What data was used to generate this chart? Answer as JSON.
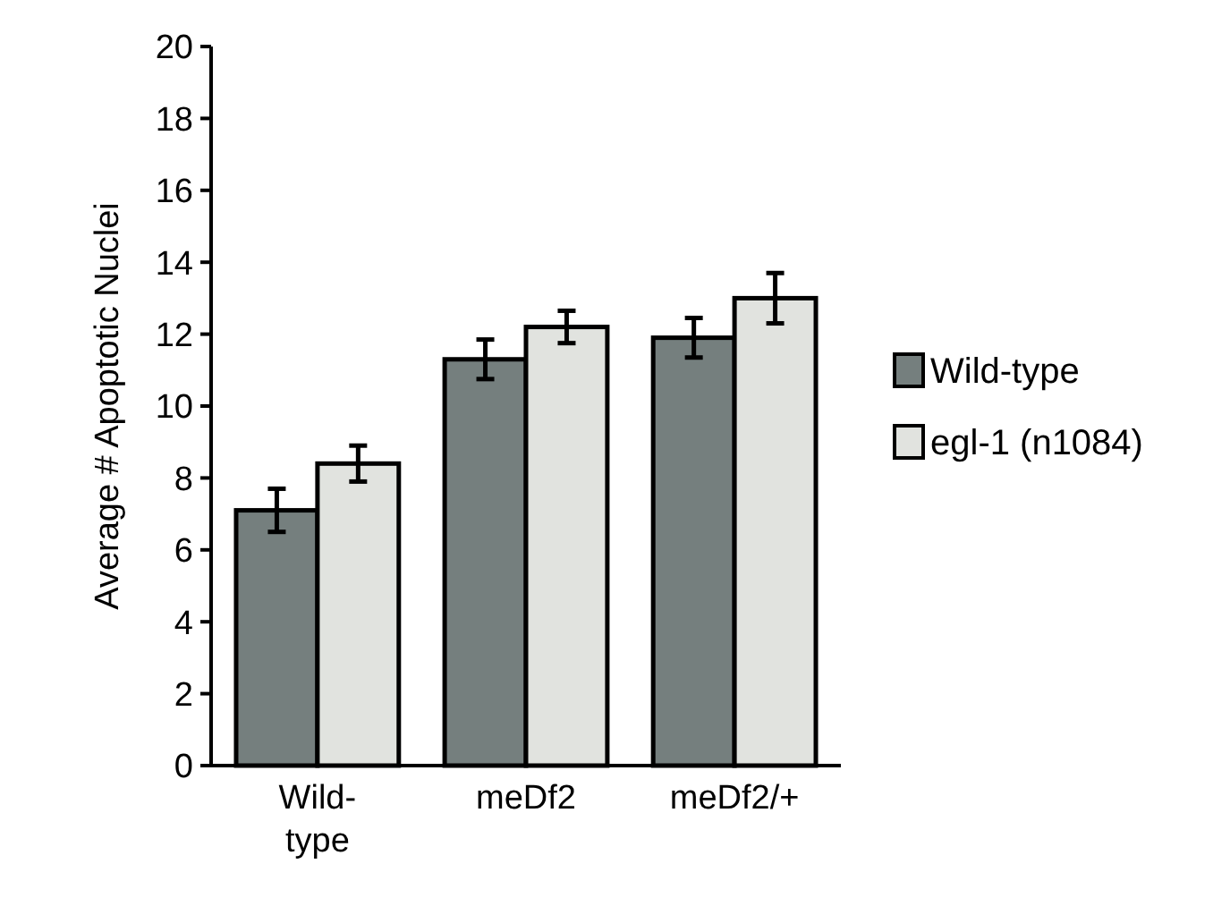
{
  "chart_data": {
    "type": "bar",
    "ylabel": "Average # Apoptotic Nuclei",
    "categories": [
      "Wild-type",
      "meDf2",
      "meDf2/+"
    ],
    "series": [
      {
        "name": "Wild-type",
        "color": "#757f7e",
        "values": [
          7.1,
          11.3,
          11.9
        ],
        "errors": [
          0.6,
          0.55,
          0.55
        ]
      },
      {
        "name": "egl-1 (n1084)",
        "color": "#e1e3df",
        "values": [
          8.4,
          12.2,
          13.0
        ],
        "errors": [
          0.5,
          0.45,
          0.7
        ]
      }
    ],
    "ylim": [
      0,
      20
    ],
    "yticks": [
      0,
      2,
      4,
      6,
      8,
      10,
      12,
      14,
      16,
      18,
      20
    ],
    "legend": "right"
  }
}
